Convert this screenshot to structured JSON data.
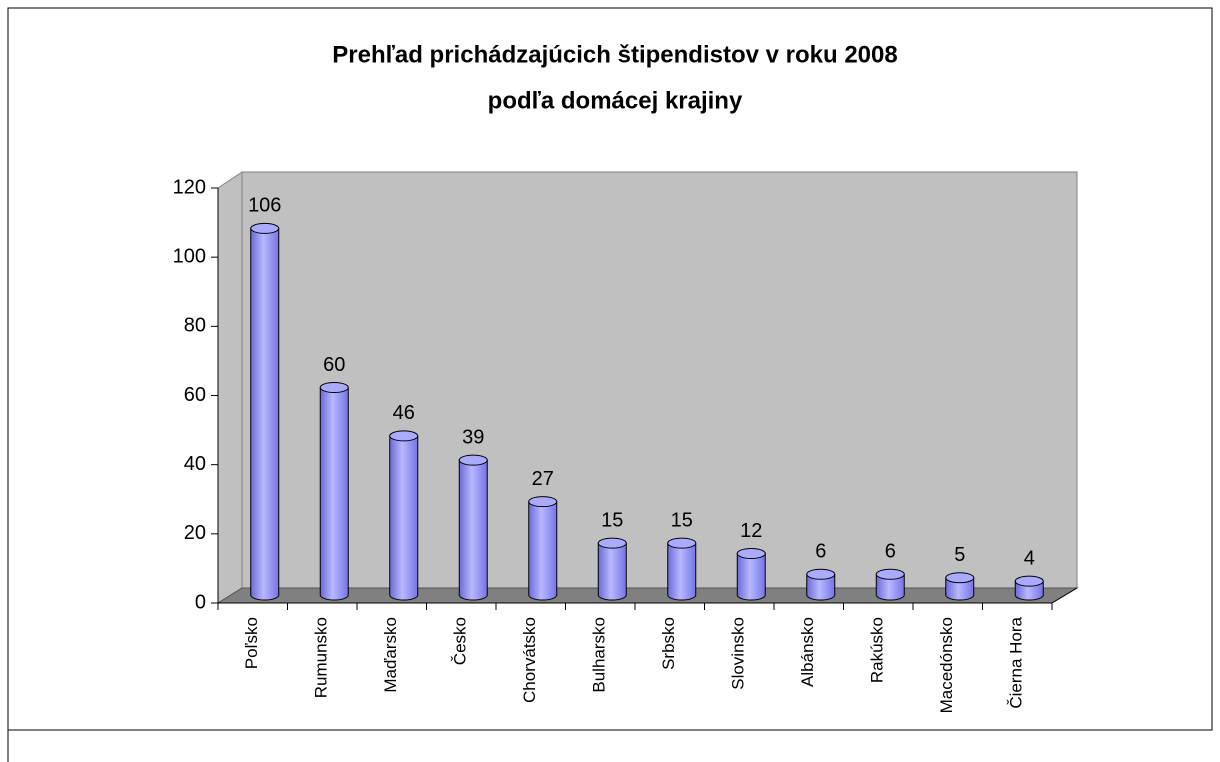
{
  "chart_data": {
    "type": "bar",
    "title": "Prehľad prichádzajúcich štipendistov v roku 2008",
    "subtitle": "podľa domácej krajiny",
    "categories": [
      "Poľsko",
      "Rumunsko",
      "Maďarsko",
      "Česko",
      "Chorvátsko",
      "Bulharsko",
      "Srbsko",
      "Slovinsko",
      "Albánsko",
      "Rakúsko",
      "Macedónsko",
      "Čierna Hora"
    ],
    "values": [
      106,
      60,
      46,
      39,
      27,
      15,
      15,
      12,
      6,
      6,
      5,
      4
    ],
    "color": "#9999ff",
    "ylim": [
      0,
      120
    ],
    "yticks": [
      0,
      20,
      40,
      60,
      80,
      100,
      120
    ]
  }
}
